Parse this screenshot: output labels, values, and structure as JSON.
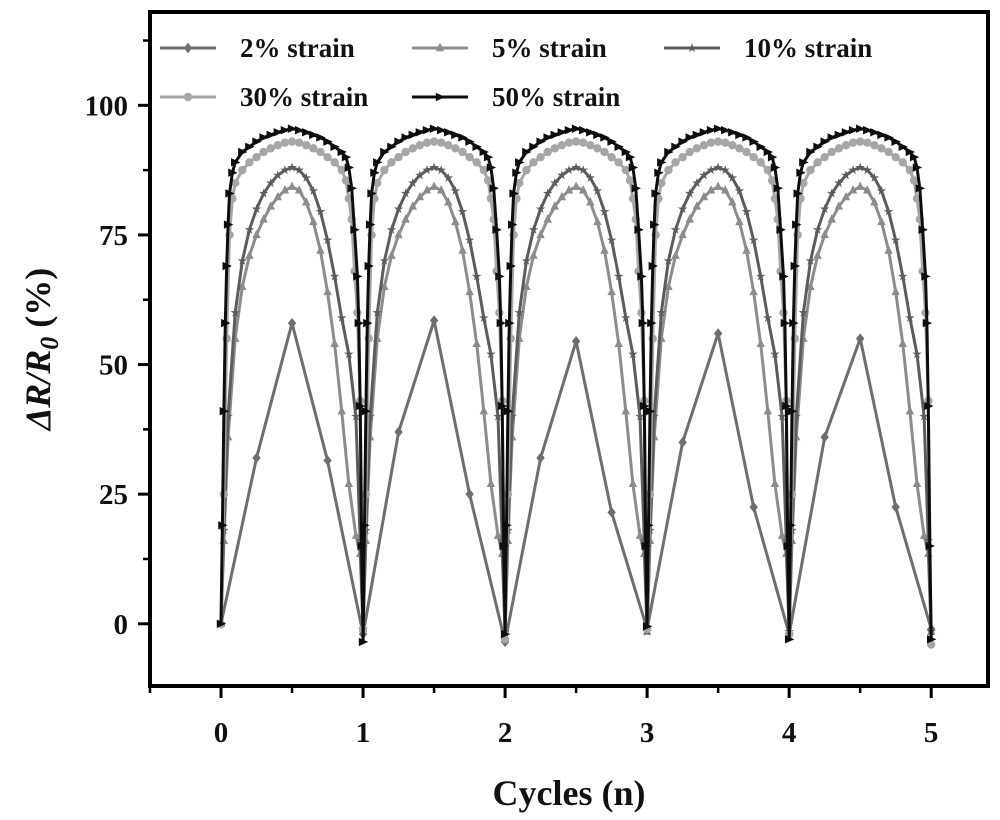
{
  "chart_data": {
    "type": "line",
    "xlabel": "Cycles (n)",
    "ylabel_main": "ΔR/R",
    "ylabel_sub": "0",
    "ylabel_unit": " (%)",
    "xlim": [
      -0.5,
      5.4
    ],
    "ylim": [
      -12,
      118
    ],
    "x_ticks": [
      0,
      1,
      2,
      3,
      4,
      5
    ],
    "y_ticks": [
      0,
      25,
      50,
      75,
      100
    ],
    "grid": false,
    "legend_position": "top",
    "series": [
      {
        "name": "2% strain",
        "color": "#6e6e6e",
        "marker": "diamond",
        "x": [
          0,
          0.25,
          0.5,
          0.75,
          1,
          1.25,
          1.5,
          1.75,
          2,
          2.25,
          2.5,
          2.75,
          3,
          3.25,
          3.5,
          3.75,
          4,
          4.25,
          4.5,
          4.75,
          5
        ],
        "y": [
          0,
          32,
          58,
          31.5,
          -2,
          37,
          58.5,
          25,
          -3.5,
          32,
          54.5,
          21.5,
          -1,
          35,
          56,
          22.5,
          -2,
          36,
          55,
          22.5,
          -1
        ]
      },
      {
        "name": "5% strain",
        "color": "#8c8c8c",
        "marker": "triangle",
        "x": [
          0,
          0.02,
          0.05,
          0.1,
          0.15,
          0.2,
          0.25,
          0.3,
          0.35,
          0.4,
          0.45,
          0.5,
          0.55,
          0.6,
          0.65,
          0.7,
          0.75,
          0.8,
          0.85,
          0.9,
          0.95,
          0.98,
          1,
          1.02,
          1.05,
          1.1,
          1.15,
          1.2,
          1.25,
          1.3,
          1.35,
          1.4,
          1.45,
          1.5,
          1.55,
          1.6,
          1.65,
          1.7,
          1.75,
          1.8,
          1.85,
          1.9,
          1.95,
          1.98,
          2,
          2.02,
          2.05,
          2.1,
          2.15,
          2.2,
          2.25,
          2.3,
          2.35,
          2.4,
          2.45,
          2.5,
          2.55,
          2.6,
          2.65,
          2.7,
          2.75,
          2.8,
          2.85,
          2.9,
          2.95,
          2.98,
          3,
          3.02,
          3.05,
          3.1,
          3.15,
          3.2,
          3.25,
          3.3,
          3.35,
          3.4,
          3.45,
          3.5,
          3.55,
          3.6,
          3.65,
          3.7,
          3.75,
          3.8,
          3.85,
          3.9,
          3.95,
          3.98,
          4,
          4.02,
          4.05,
          4.1,
          4.15,
          4.2,
          4.25,
          4.3,
          4.35,
          4.4,
          4.45,
          4.5,
          4.55,
          4.6,
          4.65,
          4.7,
          4.75,
          4.8,
          4.85,
          4.9,
          4.95,
          4.98,
          5
        ],
        "y": [
          0,
          16,
          36,
          55,
          65,
          71,
          75,
          78,
          80.5,
          82.3,
          83.6,
          84.3,
          83.6,
          81.3,
          77.5,
          72,
          64,
          54,
          41,
          27,
          17,
          13.5,
          -1,
          16,
          36,
          55,
          65,
          71,
          75,
          78,
          80.5,
          82.3,
          83.6,
          84.3,
          83.6,
          81.3,
          77.5,
          72,
          64,
          54,
          41,
          27,
          17,
          13.5,
          -1.5,
          16,
          36,
          55,
          65,
          71,
          75,
          78,
          80.5,
          82.3,
          83.6,
          84.3,
          83.6,
          81.3,
          77.5,
          72,
          64,
          54,
          41,
          27,
          17,
          13.5,
          -1.5,
          16,
          36,
          55,
          65,
          71,
          75,
          78,
          80.5,
          82.3,
          83.6,
          84.3,
          83.6,
          81.3,
          77.5,
          72,
          64,
          54,
          41,
          27,
          17,
          13.5,
          -1.5,
          16,
          36,
          55,
          65,
          71,
          75,
          78,
          80.5,
          82.3,
          83.6,
          84.3,
          83.6,
          81.3,
          77.5,
          72,
          64,
          54,
          41,
          27,
          17,
          13.5,
          -1.5
        ]
      },
      {
        "name": "10% strain",
        "color": "#5c5c5c",
        "marker": "star",
        "x": [
          0,
          0.02,
          0.05,
          0.1,
          0.15,
          0.2,
          0.25,
          0.3,
          0.35,
          0.4,
          0.45,
          0.5,
          0.55,
          0.6,
          0.65,
          0.7,
          0.75,
          0.8,
          0.85,
          0.9,
          0.95,
          0.98,
          1,
          1.02,
          1.05,
          1.1,
          1.15,
          1.2,
          1.25,
          1.3,
          1.35,
          1.4,
          1.45,
          1.5,
          1.55,
          1.6,
          1.65,
          1.7,
          1.75,
          1.8,
          1.85,
          1.9,
          1.95,
          1.98,
          2,
          2.02,
          2.05,
          2.1,
          2.15,
          2.2,
          2.25,
          2.3,
          2.35,
          2.4,
          2.45,
          2.5,
          2.55,
          2.6,
          2.65,
          2.7,
          2.75,
          2.8,
          2.85,
          2.9,
          2.95,
          2.98,
          3,
          3.02,
          3.05,
          3.1,
          3.15,
          3.2,
          3.25,
          3.3,
          3.35,
          3.4,
          3.45,
          3.5,
          3.55,
          3.6,
          3.65,
          3.7,
          3.75,
          3.8,
          3.85,
          3.9,
          3.95,
          3.98,
          4,
          4.02,
          4.05,
          4.1,
          4.15,
          4.2,
          4.25,
          4.3,
          4.35,
          4.4,
          4.45,
          4.5,
          4.55,
          4.6,
          4.65,
          4.7,
          4.75,
          4.8,
          4.85,
          4.9,
          4.95,
          4.98,
          5
        ],
        "y": [
          0,
          18,
          40,
          60,
          70,
          76,
          80,
          83,
          85,
          86.5,
          87.5,
          88,
          87.5,
          86,
          83.5,
          79.5,
          74,
          67,
          59,
          52,
          40,
          16,
          -1,
          18,
          40,
          60,
          70,
          76,
          80,
          83,
          85,
          86.5,
          87.5,
          88,
          87.5,
          86,
          83.5,
          79.5,
          74,
          67,
          59,
          52,
          40,
          16,
          -1.5,
          18,
          40,
          60,
          70,
          76,
          80,
          83,
          85,
          86.5,
          87.5,
          88,
          87.5,
          86,
          83.5,
          79.5,
          74,
          67,
          59,
          52,
          40,
          16,
          -1.5,
          18,
          40,
          60,
          70,
          76,
          80,
          83,
          85,
          86.5,
          87.5,
          88,
          87.5,
          86,
          83.5,
          79.5,
          74,
          67,
          59,
          52,
          40,
          16,
          -1.5,
          18,
          40,
          60,
          70,
          76,
          80,
          83,
          85,
          86.5,
          87.5,
          88,
          87.5,
          86,
          83.5,
          79.5,
          74,
          67,
          59,
          52,
          40,
          16,
          -1.5
        ]
      },
      {
        "name": "30% strain",
        "color": "#a6a6a6",
        "marker": "circle",
        "x": [
          0,
          0.02,
          0.04,
          0.06,
          0.08,
          0.1,
          0.15,
          0.2,
          0.25,
          0.3,
          0.35,
          0.4,
          0.45,
          0.5,
          0.55,
          0.6,
          0.65,
          0.7,
          0.75,
          0.8,
          0.85,
          0.88,
          0.9,
          0.92,
          0.94,
          0.96,
          0.98,
          1,
          1.02,
          1.04,
          1.06,
          1.08,
          1.1,
          1.15,
          1.2,
          1.25,
          1.3,
          1.35,
          1.4,
          1.45,
          1.5,
          1.55,
          1.6,
          1.65,
          1.7,
          1.75,
          1.8,
          1.85,
          1.88,
          1.9,
          1.92,
          1.94,
          1.96,
          1.98,
          2,
          2.02,
          2.04,
          2.06,
          2.08,
          2.1,
          2.15,
          2.2,
          2.25,
          2.3,
          2.35,
          2.4,
          2.45,
          2.5,
          2.55,
          2.6,
          2.65,
          2.7,
          2.75,
          2.8,
          2.85,
          2.88,
          2.9,
          2.92,
          2.94,
          2.96,
          2.98,
          3,
          3.02,
          3.04,
          3.06,
          3.08,
          3.1,
          3.15,
          3.2,
          3.25,
          3.3,
          3.35,
          3.4,
          3.45,
          3.5,
          3.55,
          3.6,
          3.65,
          3.7,
          3.75,
          3.8,
          3.85,
          3.88,
          3.9,
          3.92,
          3.94,
          3.96,
          3.98,
          4,
          4.02,
          4.04,
          4.06,
          4.08,
          4.1,
          4.15,
          4.2,
          4.25,
          4.3,
          4.35,
          4.4,
          4.45,
          4.5,
          4.55,
          4.6,
          4.65,
          4.7,
          4.75,
          4.8,
          4.85,
          4.88,
          4.9,
          4.92,
          4.94,
          4.96,
          4.98,
          5
        ],
        "y": [
          0,
          25,
          55,
          75,
          82,
          85,
          87.5,
          89,
          90,
          91,
          91.7,
          92.3,
          92.8,
          93,
          92.8,
          92.3,
          91.7,
          91,
          90,
          89,
          87.5,
          85.5,
          82,
          78,
          68,
          60,
          43,
          -1,
          25,
          55,
          75,
          82,
          85,
          87.5,
          89,
          90,
          91,
          91.7,
          92.3,
          92.8,
          93,
          92.8,
          92.3,
          91.7,
          91,
          90,
          89,
          87.5,
          85.5,
          82,
          78,
          68,
          60,
          43,
          -3,
          25,
          55,
          75,
          82,
          85,
          87.5,
          89,
          90,
          91,
          91.7,
          92.3,
          92.8,
          93,
          92.8,
          92.3,
          91.7,
          91,
          90,
          89,
          87.5,
          85.5,
          82,
          78,
          68,
          60,
          43,
          -1,
          25,
          55,
          75,
          82,
          85,
          87.5,
          89,
          90,
          91,
          91.7,
          92.3,
          92.8,
          93,
          92.8,
          92.3,
          91.7,
          91,
          90,
          89,
          87.5,
          85.5,
          82,
          78,
          68,
          60,
          43,
          -2,
          25,
          55,
          75,
          82,
          85,
          87.5,
          89,
          90,
          91,
          91.7,
          92.3,
          92.8,
          93,
          92.8,
          92.3,
          91.7,
          91,
          90,
          89,
          87.5,
          85.5,
          82,
          78,
          68,
          60,
          43,
          -4
        ]
      },
      {
        "name": "50% strain",
        "color": "#0d0d0d",
        "marker": "right-triangle",
        "x": [
          0,
          0.01,
          0.02,
          0.03,
          0.04,
          0.05,
          0.06,
          0.08,
          0.1,
          0.15,
          0.2,
          0.25,
          0.3,
          0.35,
          0.4,
          0.45,
          0.5,
          0.55,
          0.6,
          0.65,
          0.7,
          0.75,
          0.8,
          0.85,
          0.88,
          0.9,
          0.92,
          0.94,
          0.96,
          0.97,
          0.98,
          0.99,
          1,
          1.01,
          1.02,
          1.03,
          1.04,
          1.05,
          1.06,
          1.08,
          1.1,
          1.15,
          1.2,
          1.25,
          1.3,
          1.35,
          1.4,
          1.45,
          1.5,
          1.55,
          1.6,
          1.65,
          1.7,
          1.75,
          1.8,
          1.85,
          1.88,
          1.9,
          1.92,
          1.94,
          1.96,
          1.97,
          1.98,
          1.99,
          2,
          2.01,
          2.02,
          2.03,
          2.04,
          2.05,
          2.06,
          2.08,
          2.1,
          2.15,
          2.2,
          2.25,
          2.3,
          2.35,
          2.4,
          2.45,
          2.5,
          2.55,
          2.6,
          2.65,
          2.7,
          2.75,
          2.8,
          2.85,
          2.88,
          2.9,
          2.92,
          2.94,
          2.96,
          2.97,
          2.98,
          2.99,
          3,
          3.01,
          3.02,
          3.03,
          3.04,
          3.05,
          3.06,
          3.08,
          3.1,
          3.15,
          3.2,
          3.25,
          3.3,
          3.35,
          3.4,
          3.45,
          3.5,
          3.55,
          3.6,
          3.65,
          3.7,
          3.75,
          3.8,
          3.85,
          3.88,
          3.9,
          3.92,
          3.94,
          3.96,
          3.97,
          3.98,
          3.99,
          4,
          4.01,
          4.02,
          4.03,
          4.04,
          4.05,
          4.06,
          4.08,
          4.1,
          4.15,
          4.2,
          4.25,
          4.3,
          4.35,
          4.4,
          4.45,
          4.5,
          4.55,
          4.6,
          4.65,
          4.7,
          4.75,
          4.8,
          4.85,
          4.88,
          4.9,
          4.92,
          4.94,
          4.96,
          4.97,
          4.98,
          4.99,
          5
        ],
        "y": [
          0,
          19,
          41,
          58,
          69,
          77,
          83,
          87,
          89,
          91,
          92,
          93,
          93.8,
          94.3,
          94.8,
          95.2,
          95.5,
          95.2,
          94.8,
          94.3,
          93.8,
          93,
          92,
          91,
          90,
          88,
          84,
          76,
          67,
          58,
          42,
          15,
          -3.5,
          19,
          41,
          58,
          69,
          77,
          83,
          87,
          89,
          91,
          92,
          93,
          93.8,
          94.3,
          94.8,
          95.2,
          95.5,
          95.2,
          94.8,
          94.3,
          93.8,
          93,
          92,
          91,
          90,
          88,
          84,
          76,
          67,
          58,
          42,
          15,
          -2,
          19,
          41,
          58,
          69,
          77,
          83,
          87,
          89,
          91,
          92,
          93,
          93.8,
          94.3,
          94.8,
          95.2,
          95.5,
          95.2,
          94.8,
          94.3,
          93.8,
          93,
          92,
          91,
          90,
          88,
          84,
          76,
          67,
          58,
          42,
          15,
          -0.5,
          19,
          41,
          58,
          69,
          77,
          83,
          87,
          89,
          91,
          92,
          93,
          93.8,
          94.3,
          94.8,
          95.2,
          95.5,
          95.2,
          94.8,
          94.3,
          93.8,
          93,
          92,
          91,
          90,
          88,
          84,
          76,
          67,
          58,
          42,
          15,
          -3,
          19,
          41,
          58,
          69,
          77,
          83,
          87,
          89,
          91,
          92,
          93,
          93.8,
          94.3,
          94.8,
          95.2,
          95.5,
          95.2,
          94.8,
          94.3,
          93.8,
          93,
          92,
          91,
          90,
          88,
          84,
          76,
          67,
          58,
          42,
          15,
          -3
        ]
      }
    ]
  }
}
